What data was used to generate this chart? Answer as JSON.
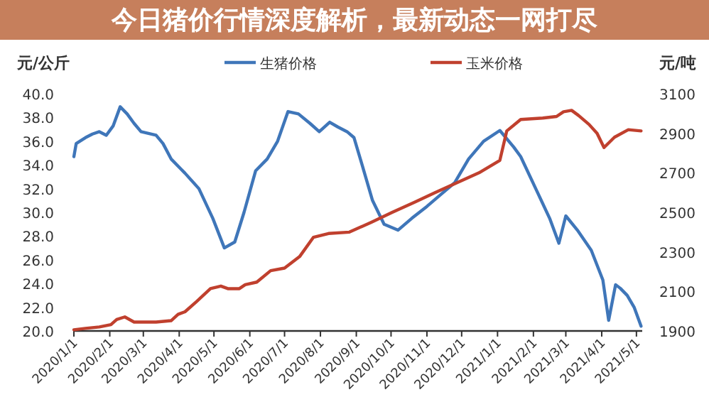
{
  "chart_data": {
    "type": "line",
    "title": "今日猪价行情深度解析，最新动态一网打尽",
    "ylabel": "元/公斤",
    "y2label": "元/吨",
    "legend": "top",
    "grid": false,
    "xlim": [
      "2020-01-01",
      "2021-05-06"
    ],
    "xticks": [
      {
        "value": "2020-01-01",
        "label": "2020/1/1"
      },
      {
        "value": "2020-02-01",
        "label": "2020/2/1"
      },
      {
        "value": "2020-03-01",
        "label": "2020/3/1"
      },
      {
        "value": "2020-04-01",
        "label": "2020/4/1"
      },
      {
        "value": "2020-05-01",
        "label": "2020/5/1"
      },
      {
        "value": "2020-06-01",
        "label": "2020/6/1"
      },
      {
        "value": "2020-07-01",
        "label": "2020/7/1"
      },
      {
        "value": "2020-08-01",
        "label": "2020/8/1"
      },
      {
        "value": "2020-09-01",
        "label": "2020/9/1"
      },
      {
        "value": "2020-10-01",
        "label": "2020/10/1"
      },
      {
        "value": "2020-11-01",
        "label": "2020/11/1"
      },
      {
        "value": "2020-12-01",
        "label": "2020/12/1"
      },
      {
        "value": "2021-01-01",
        "label": "2021/1/1"
      },
      {
        "value": "2021-02-01",
        "label": "2021/2/1"
      },
      {
        "value": "2021-03-01",
        "label": "2021/3/1"
      },
      {
        "value": "2021-04-01",
        "label": "2021/4/1"
      },
      {
        "value": "2021-05-01",
        "label": "2021/5/1"
      }
    ],
    "ylim": [
      20,
      40
    ],
    "yticks": [
      {
        "value": 20,
        "label": "20.0"
      },
      {
        "value": 22,
        "label": "22.0"
      },
      {
        "value": 24,
        "label": "24.0"
      },
      {
        "value": 26,
        "label": "26.0"
      },
      {
        "value": 28,
        "label": "28.0"
      },
      {
        "value": 30,
        "label": "30.0"
      },
      {
        "value": 32,
        "label": "32.0"
      },
      {
        "value": 34,
        "label": "34.0"
      },
      {
        "value": 36,
        "label": "36.0"
      },
      {
        "value": 38,
        "label": "38.0"
      },
      {
        "value": 40,
        "label": "40.0"
      }
    ],
    "y2lim": [
      1900,
      3100
    ],
    "y2ticks": [
      1900,
      2100,
      2300,
      2500,
      2700,
      2900,
      3100
    ],
    "series": [
      {
        "name": "生猪价格",
        "color": "#3f76b9",
        "x": [
          "2020-01-01",
          "2020-01-03",
          "2020-01-11",
          "2020-01-17",
          "2020-01-23",
          "2020-01-29",
          "2020-02-04",
          "2020-02-10",
          "2020-02-16",
          "2020-02-22",
          "2020-02-28",
          "2020-03-12",
          "2020-03-18",
          "2020-03-25",
          "2020-04-06",
          "2020-04-18",
          "2020-04-30",
          "2020-05-10",
          "2020-05-19",
          "2020-05-27",
          "2020-06-06",
          "2020-06-16",
          "2020-06-25",
          "2020-07-04",
          "2020-07-13",
          "2020-07-23",
          "2020-07-31",
          "2020-08-09",
          "2020-08-16",
          "2020-08-24",
          "2020-08-30",
          "2020-09-06",
          "2020-09-15",
          "2020-09-25",
          "2020-10-07",
          "2020-10-19",
          "2020-11-01",
          "2020-11-13",
          "2020-11-25",
          "2020-12-07",
          "2020-12-20",
          "2021-01-03",
          "2021-01-15",
          "2021-01-21",
          "2021-02-03",
          "2021-02-15",
          "2021-02-23",
          "2021-03-01",
          "2021-03-11",
          "2021-03-23",
          "2021-04-02",
          "2021-04-07",
          "2021-04-13",
          "2021-04-17",
          "2021-04-23",
          "2021-04-29",
          "2021-05-05"
        ],
        "values": [
          34.7,
          35.8,
          36.3,
          36.6,
          36.8,
          36.5,
          37.3,
          38.9,
          38.3,
          37.5,
          36.8,
          36.5,
          35.8,
          34.5,
          33.3,
          32.0,
          29.5,
          27.0,
          27.5,
          30.0,
          33.5,
          34.5,
          36.0,
          38.5,
          38.3,
          37.5,
          36.8,
          37.6,
          37.2,
          36.8,
          36.3,
          34.0,
          31.0,
          29.0,
          28.5,
          29.5,
          30.5,
          31.5,
          32.5,
          34.5,
          36.0,
          36.9,
          35.5,
          34.7,
          32.0,
          29.5,
          27.4,
          29.7,
          28.5,
          26.8,
          24.3,
          20.9,
          23.9,
          23.6,
          23.0,
          22.0,
          20.4
        ]
      },
      {
        "name": "玉米价格",
        "color": "#c0402e",
        "axis": "y2",
        "x": [
          "2020-01-01",
          "2020-01-11",
          "2020-01-23",
          "2020-02-02",
          "2020-02-07",
          "2020-02-14",
          "2020-02-22",
          "2020-03-12",
          "2020-03-25",
          "2020-03-31",
          "2020-04-06",
          "2020-04-16",
          "2020-04-28",
          "2020-05-07",
          "2020-05-13",
          "2020-05-23",
          "2020-05-28",
          "2020-06-07",
          "2020-06-19",
          "2020-07-01",
          "2020-07-14",
          "2020-07-26",
          "2020-08-08",
          "2020-08-26",
          "2020-09-14",
          "2020-10-02",
          "2020-10-21",
          "2020-11-08",
          "2020-11-27",
          "2020-12-16",
          "2021-01-03",
          "2021-01-09",
          "2021-01-21",
          "2021-02-09",
          "2021-02-21",
          "2021-02-27",
          "2021-03-06",
          "2021-03-12",
          "2021-03-21",
          "2021-03-28",
          "2021-04-03",
          "2021-04-12",
          "2021-04-24",
          "2021-05-05"
        ],
        "values": [
          1906,
          1913,
          1920,
          1932,
          1958,
          1971,
          1945,
          1945,
          1952,
          1984,
          1997,
          2049,
          2114,
          2127,
          2114,
          2114,
          2134,
          2147,
          2205,
          2218,
          2276,
          2374,
          2393,
          2400,
          2450,
          2500,
          2550,
          2600,
          2650,
          2700,
          2763,
          2912,
          2970,
          2977,
          2985,
          3009,
          3016,
          2990,
          2945,
          2900,
          2828,
          2880,
          2918,
          2912
        ]
      }
    ]
  }
}
